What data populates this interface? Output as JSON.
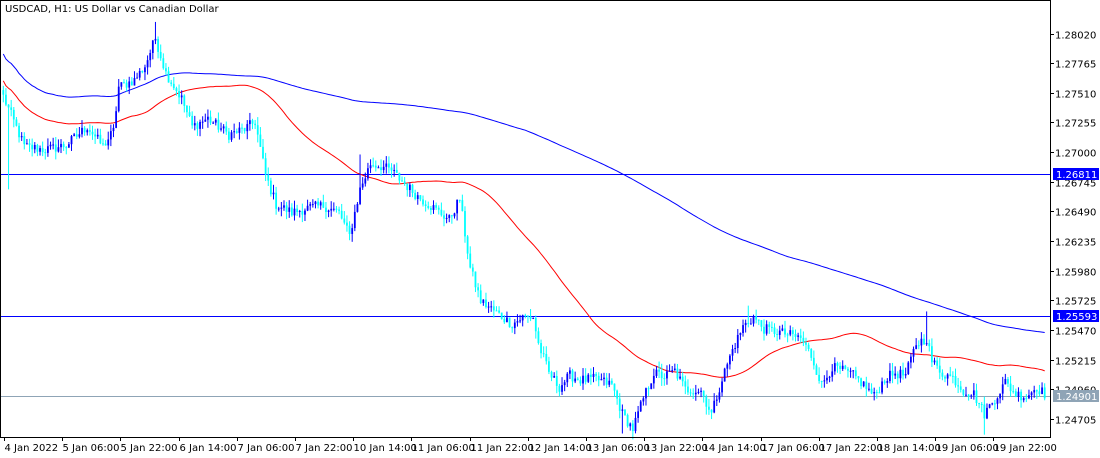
{
  "chart_data": {
    "type": "candlestick",
    "title": "USDCAD, H1:  US Dollar vs Canadian Dollar",
    "y_ticks": [
      1.2802,
      1.27765,
      1.2751,
      1.27255,
      1.27,
      1.26745,
      1.2649,
      1.26235,
      1.2598,
      1.25725,
      1.2547,
      1.25215,
      1.2496,
      1.24705
    ],
    "y_tick_labels": [
      "1.28020",
      "1.27765",
      "1.27510",
      "1.27255",
      "1.27000",
      "1.26745",
      "1.26490",
      "1.26235",
      "1.25980",
      "1.25725",
      "1.25470",
      "1.25215",
      "1.24960",
      "1.24705"
    ],
    "x_labels": [
      "4 Jan 2022",
      "5 Jan 06:00",
      "5 Jan 22:00",
      "6 Jan 14:00",
      "7 Jan 06:00",
      "7 Jan 22:00",
      "10 Jan 14:00",
      "11 Jan 06:00",
      "11 Jan 22:00",
      "12 Jan 14:00",
      "13 Jan 06:00",
      "13 Jan 22:00",
      "14 Jan 14:00",
      "17 Jan 06:00",
      "17 Jan 22:00",
      "18 Jan 14:00",
      "19 Jan 06:00",
      "19 Jan 22:00"
    ],
    "ylim": [
      1.2455,
      1.283
    ],
    "horizontal_lines": [
      {
        "value": 1.26811,
        "label": "1.26811",
        "color": "#0000ff"
      },
      {
        "value": 1.25593,
        "label": "1.25593",
        "color": "#0000ff"
      },
      {
        "value": 1.24901,
        "label": "1.24901",
        "color": "#8fa4b6",
        "current_price": true
      }
    ],
    "colors": {
      "bull": "#0000ff",
      "bear": "#00ffff",
      "ma_fast": "#ff0000",
      "ma_slow": "#0000ff",
      "axis": "#000000",
      "grid": false
    },
    "close_anchors": [
      [
        0,
        1.2748
      ],
      [
        8,
        1.2705
      ],
      [
        16,
        1.2702
      ],
      [
        24,
        1.2706
      ],
      [
        32,
        1.2722
      ],
      [
        38,
        1.2705
      ],
      [
        42,
        1.2718
      ],
      [
        44,
        1.2756
      ],
      [
        50,
        1.2762
      ],
      [
        54,
        1.2774
      ],
      [
        58,
        1.2798
      ],
      [
        62,
        1.2768
      ],
      [
        68,
        1.2746
      ],
      [
        72,
        1.2722
      ],
      [
        78,
        1.2729
      ],
      [
        86,
        1.2715
      ],
      [
        92,
        1.272
      ],
      [
        96,
        1.2726
      ],
      [
        100,
        1.268
      ],
      [
        104,
        1.2655
      ],
      [
        110,
        1.2648
      ],
      [
        116,
        1.2652
      ],
      [
        122,
        1.2654
      ],
      [
        128,
        1.2648
      ],
      [
        132,
        1.2628
      ],
      [
        136,
        1.2668
      ],
      [
        140,
        1.269
      ],
      [
        144,
        1.2688
      ],
      [
        148,
        1.2684
      ],
      [
        152,
        1.2675
      ],
      [
        158,
        1.2662
      ],
      [
        164,
        1.2652
      ],
      [
        170,
        1.2642
      ],
      [
        174,
        1.266
      ],
      [
        178,
        1.26
      ],
      [
        182,
        1.2572
      ],
      [
        188,
        1.2562
      ],
      [
        194,
        1.2552
      ],
      [
        198,
        1.2558
      ],
      [
        202,
        1.2558
      ],
      [
        204,
        1.2535
      ],
      [
        208,
        1.251
      ],
      [
        212,
        1.2498
      ],
      [
        216,
        1.2508
      ],
      [
        220,
        1.2504
      ],
      [
        226,
        1.2505
      ],
      [
        232,
        1.25
      ],
      [
        236,
        1.2475
      ],
      [
        240,
        1.2462
      ],
      [
        244,
        1.2488
      ],
      [
        248,
        1.251
      ],
      [
        252,
        1.2507
      ],
      [
        256,
        1.2512
      ],
      [
        260,
        1.2496
      ],
      [
        266,
        1.2495
      ],
      [
        270,
        1.2475
      ],
      [
        274,
        1.2505
      ],
      [
        278,
        1.253
      ],
      [
        282,
        1.255
      ],
      [
        286,
        1.2558
      ],
      [
        290,
        1.2548
      ],
      [
        294,
        1.2546
      ],
      [
        298,
        1.2544
      ],
      [
        304,
        1.254
      ],
      [
        308,
        1.2525
      ],
      [
        312,
        1.25
      ],
      [
        316,
        1.2515
      ],
      [
        320,
        1.2512
      ],
      [
        324,
        1.2508
      ],
      [
        328,
        1.25
      ],
      [
        332,
        1.249
      ],
      [
        336,
        1.2505
      ],
      [
        340,
        1.251
      ],
      [
        344,
        1.2508
      ],
      [
        348,
        1.2535
      ],
      [
        352,
        1.254
      ],
      [
        354,
        1.252
      ],
      [
        358,
        1.251
      ],
      [
        362,
        1.2506
      ],
      [
        366,
        1.2495
      ],
      [
        370,
        1.2492
      ],
      [
        374,
        1.2475
      ],
      [
        378,
        1.2488
      ],
      [
        382,
        1.2502
      ],
      [
        386,
        1.2492
      ],
      [
        390,
        1.249
      ],
      [
        394,
        1.2498
      ],
      [
        397,
        1.2492
      ]
    ],
    "spike_highs": [
      [
        58,
        1.2812
      ],
      [
        136,
        1.2698
      ],
      [
        284,
        1.2568
      ],
      [
        352,
        1.2563
      ]
    ],
    "spike_lows": [
      [
        2,
        1.2668
      ],
      [
        236,
        1.2458
      ],
      [
        240,
        1.2453
      ],
      [
        374,
        1.2457
      ]
    ]
  }
}
